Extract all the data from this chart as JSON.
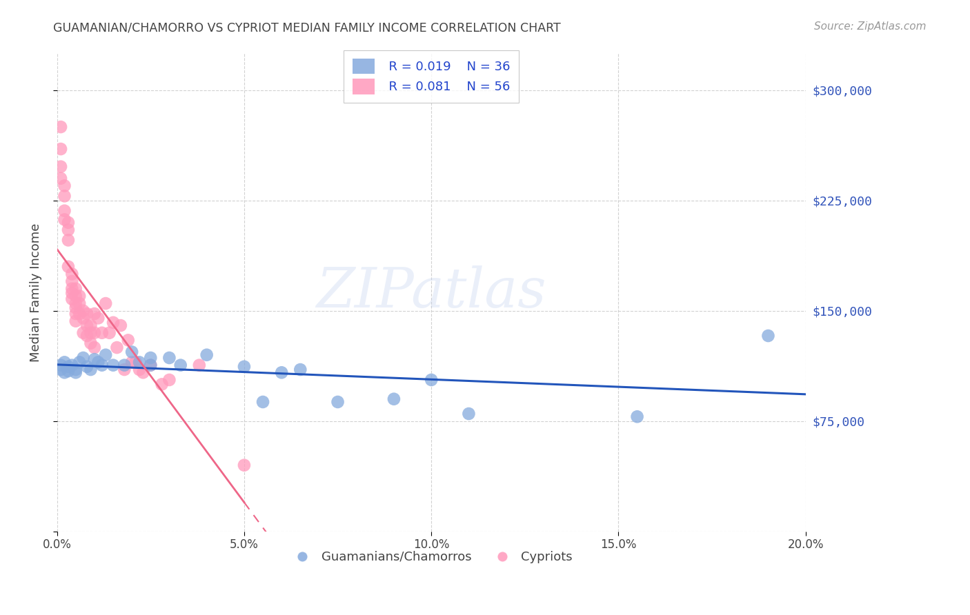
{
  "title": "GUAMANIAN/CHAMORRO VS CYPRIOT MEDIAN FAMILY INCOME CORRELATION CHART",
  "source": "Source: ZipAtlas.com",
  "ylabel": "Median Family Income",
  "xlim": [
    0.0,
    0.2
  ],
  "ylim": [
    0,
    325000
  ],
  "yticks": [
    0,
    75000,
    150000,
    225000,
    300000
  ],
  "xticks": [
    0.0,
    0.05,
    0.1,
    0.15,
    0.2
  ],
  "xtick_labels": [
    "0.0%",
    "5.0%",
    "10.0%",
    "15.0%",
    "20.0%"
  ],
  "watermark": "ZIPatlas",
  "legend_r1": "R = 0.019",
  "legend_n1": "N = 36",
  "legend_r2": "R = 0.081",
  "legend_n2": "N = 56",
  "series1_label": "Guamanians/Chamorros",
  "series2_label": "Cypriots",
  "series1_color": "#85AADD",
  "series2_color": "#FF99BB",
  "series1_line_color": "#2255BB",
  "series2_line_color": "#EE6688",
  "background_color": "#FFFFFF",
  "grid_color": "#CCCCCC",
  "right_label_color": "#3355BB",
  "title_color": "#444444",
  "series1_x": [
    0.001,
    0.001,
    0.002,
    0.002,
    0.003,
    0.003,
    0.004,
    0.005,
    0.005,
    0.006,
    0.007,
    0.008,
    0.009,
    0.01,
    0.011,
    0.012,
    0.013,
    0.015,
    0.018,
    0.02,
    0.022,
    0.025,
    0.025,
    0.03,
    0.033,
    0.04,
    0.05,
    0.055,
    0.06,
    0.065,
    0.075,
    0.09,
    0.1,
    0.11,
    0.155,
    0.19
  ],
  "series1_y": [
    113000,
    110000,
    108000,
    115000,
    112000,
    109000,
    113000,
    110000,
    108000,
    115000,
    118000,
    112000,
    110000,
    117000,
    115000,
    113000,
    120000,
    113000,
    113000,
    122000,
    115000,
    118000,
    113000,
    118000,
    113000,
    120000,
    112000,
    88000,
    108000,
    110000,
    88000,
    90000,
    103000,
    80000,
    78000,
    133000
  ],
  "series2_x": [
    0.001,
    0.001,
    0.001,
    0.001,
    0.002,
    0.002,
    0.002,
    0.002,
    0.003,
    0.003,
    0.003,
    0.003,
    0.004,
    0.004,
    0.004,
    0.004,
    0.004,
    0.005,
    0.005,
    0.005,
    0.005,
    0.005,
    0.005,
    0.006,
    0.006,
    0.006,
    0.007,
    0.007,
    0.007,
    0.008,
    0.008,
    0.008,
    0.009,
    0.009,
    0.009,
    0.01,
    0.01,
    0.01,
    0.011,
    0.012,
    0.013,
    0.014,
    0.015,
    0.016,
    0.017,
    0.018,
    0.019,
    0.02,
    0.021,
    0.022,
    0.023,
    0.025,
    0.028,
    0.03,
    0.038,
    0.05
  ],
  "series2_y": [
    275000,
    260000,
    248000,
    240000,
    235000,
    228000,
    218000,
    212000,
    210000,
    205000,
    198000,
    180000,
    175000,
    170000,
    165000,
    162000,
    158000,
    165000,
    160000,
    155000,
    152000,
    148000,
    143000,
    160000,
    155000,
    148000,
    150000,
    145000,
    135000,
    148000,
    140000,
    133000,
    140000,
    135000,
    128000,
    148000,
    135000,
    125000,
    145000,
    135000,
    155000,
    135000,
    142000,
    125000,
    140000,
    110000,
    130000,
    115000,
    115000,
    110000,
    108000,
    113000,
    100000,
    103000,
    113000,
    45000
  ]
}
